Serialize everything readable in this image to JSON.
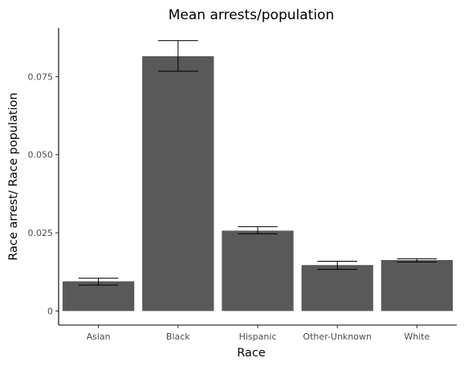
{
  "chart_data": {
    "type": "bar",
    "title": "Mean arrests/population",
    "xlabel": "Race",
    "ylabel": "Race arrest/ Race population",
    "categories": [
      "Asian",
      "Black",
      "Hispanic",
      "Other-Unknown",
      "White"
    ],
    "values": [
      0.0095,
      0.0815,
      0.0257,
      0.0147,
      0.0163
    ],
    "error_low": [
      0.0083,
      0.0767,
      0.0247,
      0.0133,
      0.0157
    ],
    "error_high": [
      0.0105,
      0.0865,
      0.027,
      0.0159,
      0.0167
    ],
    "ylim": [
      -0.0045,
      0.0905
    ],
    "yticks": [
      0,
      0.025,
      0.05,
      0.075
    ],
    "ytick_labels": [
      "0",
      "0.025",
      "0.050",
      "0.075"
    ],
    "grid": false,
    "legend": "none",
    "colors": {
      "bar": "#595959",
      "errorbar": "#000000",
      "axis": "#000000",
      "tick_text": "#4d4d4d"
    }
  }
}
